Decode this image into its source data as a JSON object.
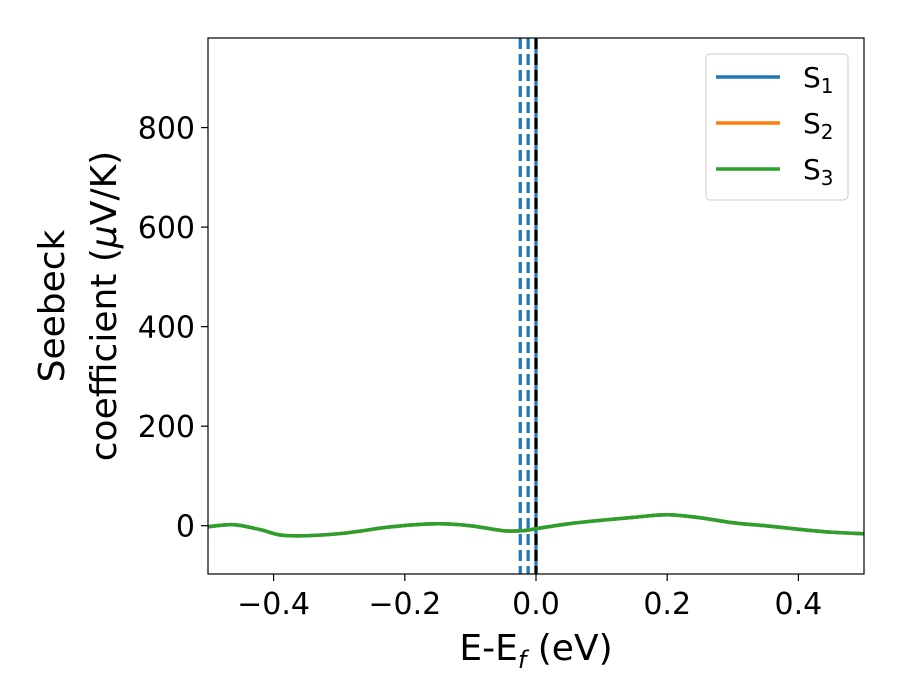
{
  "chart_data": {
    "type": "line",
    "xlabel_base": "E-E",
    "xlabel_sub": "f",
    "xlabel_unit": " (eV)",
    "ylabel_line1": "Seebeck",
    "ylabel_line2_a": "coefficient  (",
    "ylabel_line2_mu": "μ",
    "ylabel_line2_b": "V/K)",
    "xlim": [
      -0.5,
      0.5
    ],
    "ylim": [
      -97,
      980
    ],
    "x_ticks": [
      -0.4,
      -0.2,
      0.0,
      0.2,
      0.4
    ],
    "x_tick_labels": [
      "−0.4",
      "−0.2",
      "0.0",
      "0.2",
      "0.4"
    ],
    "y_ticks": [
      0,
      200,
      400,
      600,
      800
    ],
    "y_tick_labels": [
      "0",
      "200",
      "400",
      "600",
      "800"
    ],
    "legend_position": "top-right",
    "series": [
      {
        "name_base": "S",
        "name_sub": "1",
        "color": "#1f77b4",
        "x": [
          -0.5,
          -0.46,
          -0.42,
          -0.38,
          -0.3,
          -0.22,
          -0.15,
          -0.1,
          -0.05,
          -0.02,
          0.0,
          0.05,
          0.1,
          0.15,
          0.2,
          0.25,
          0.3,
          0.35,
          0.4,
          0.45,
          0.5
        ],
        "y": [
          -2,
          2,
          -8,
          -20,
          -16,
          -2,
          4,
          0,
          -10,
          -10,
          -6,
          4,
          11,
          17,
          22,
          16,
          6,
          0,
          -7,
          -13,
          -16
        ]
      },
      {
        "name_base": "S",
        "name_sub": "2",
        "color": "#ff7f0e",
        "x": [
          -0.5,
          -0.46,
          -0.42,
          -0.38,
          -0.3,
          -0.22,
          -0.15,
          -0.1,
          -0.05,
          -0.02,
          0.0,
          0.05,
          0.1,
          0.15,
          0.2,
          0.25,
          0.3,
          0.35,
          0.4,
          0.45,
          0.5
        ],
        "y": [
          -2,
          2,
          -8,
          -20,
          -16,
          -2,
          4,
          0,
          -10,
          -10,
          -6,
          4,
          11,
          17,
          22,
          16,
          6,
          0,
          -7,
          -13,
          -16
        ]
      },
      {
        "name_base": "S",
        "name_sub": "3",
        "color": "#2ca02c",
        "x": [
          -0.5,
          -0.46,
          -0.42,
          -0.38,
          -0.3,
          -0.22,
          -0.15,
          -0.1,
          -0.05,
          -0.02,
          0.0,
          0.05,
          0.1,
          0.15,
          0.2,
          0.25,
          0.3,
          0.35,
          0.4,
          0.45,
          0.5
        ],
        "y": [
          -2,
          2,
          -8,
          -20,
          -16,
          -2,
          4,
          0,
          -10,
          -10,
          -6,
          4,
          11,
          17,
          22,
          16,
          6,
          0,
          -7,
          -13,
          -16
        ]
      }
    ],
    "vertical_lines": [
      {
        "x": -0.024,
        "color": "#1f77b4",
        "style": "dashed"
      },
      {
        "x": -0.012,
        "color": "#1f77b4",
        "style": "dashed"
      },
      {
        "x": 0.0,
        "color": "#1f77b4",
        "style": "solid"
      },
      {
        "x": 0.0,
        "color": "#000000",
        "style": "dashed"
      }
    ]
  }
}
